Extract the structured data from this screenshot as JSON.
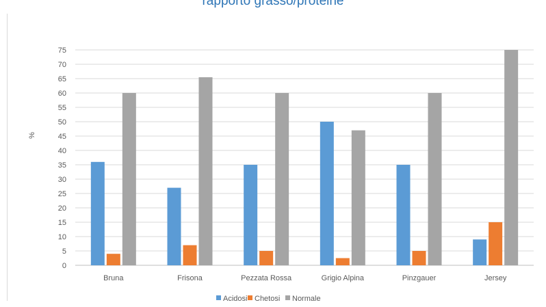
{
  "chart_data": {
    "type": "bar",
    "title": "rapporto grasso/proteine",
    "xlabel": "",
    "ylabel": "%",
    "ylim": [
      0,
      75
    ],
    "ytick_step": 5,
    "grid": true,
    "legend_position": "bottom",
    "categories": [
      "Bruna",
      "Frisona",
      "Pezzata Rossa",
      "Grigio Alpina",
      "Pinzgauer",
      "Jersey"
    ],
    "series": [
      {
        "name": "Acidosi",
        "color": "#5b9bd5",
        "values": [
          36,
          27,
          35,
          50,
          35,
          9
        ]
      },
      {
        "name": "Chetosi",
        "color": "#ed7d31",
        "values": [
          4,
          7,
          5,
          2.5,
          5,
          15
        ]
      },
      {
        "name": "Normale",
        "color": "#a5a5a5",
        "values": [
          60,
          65.5,
          60,
          47,
          60,
          75
        ]
      }
    ]
  }
}
